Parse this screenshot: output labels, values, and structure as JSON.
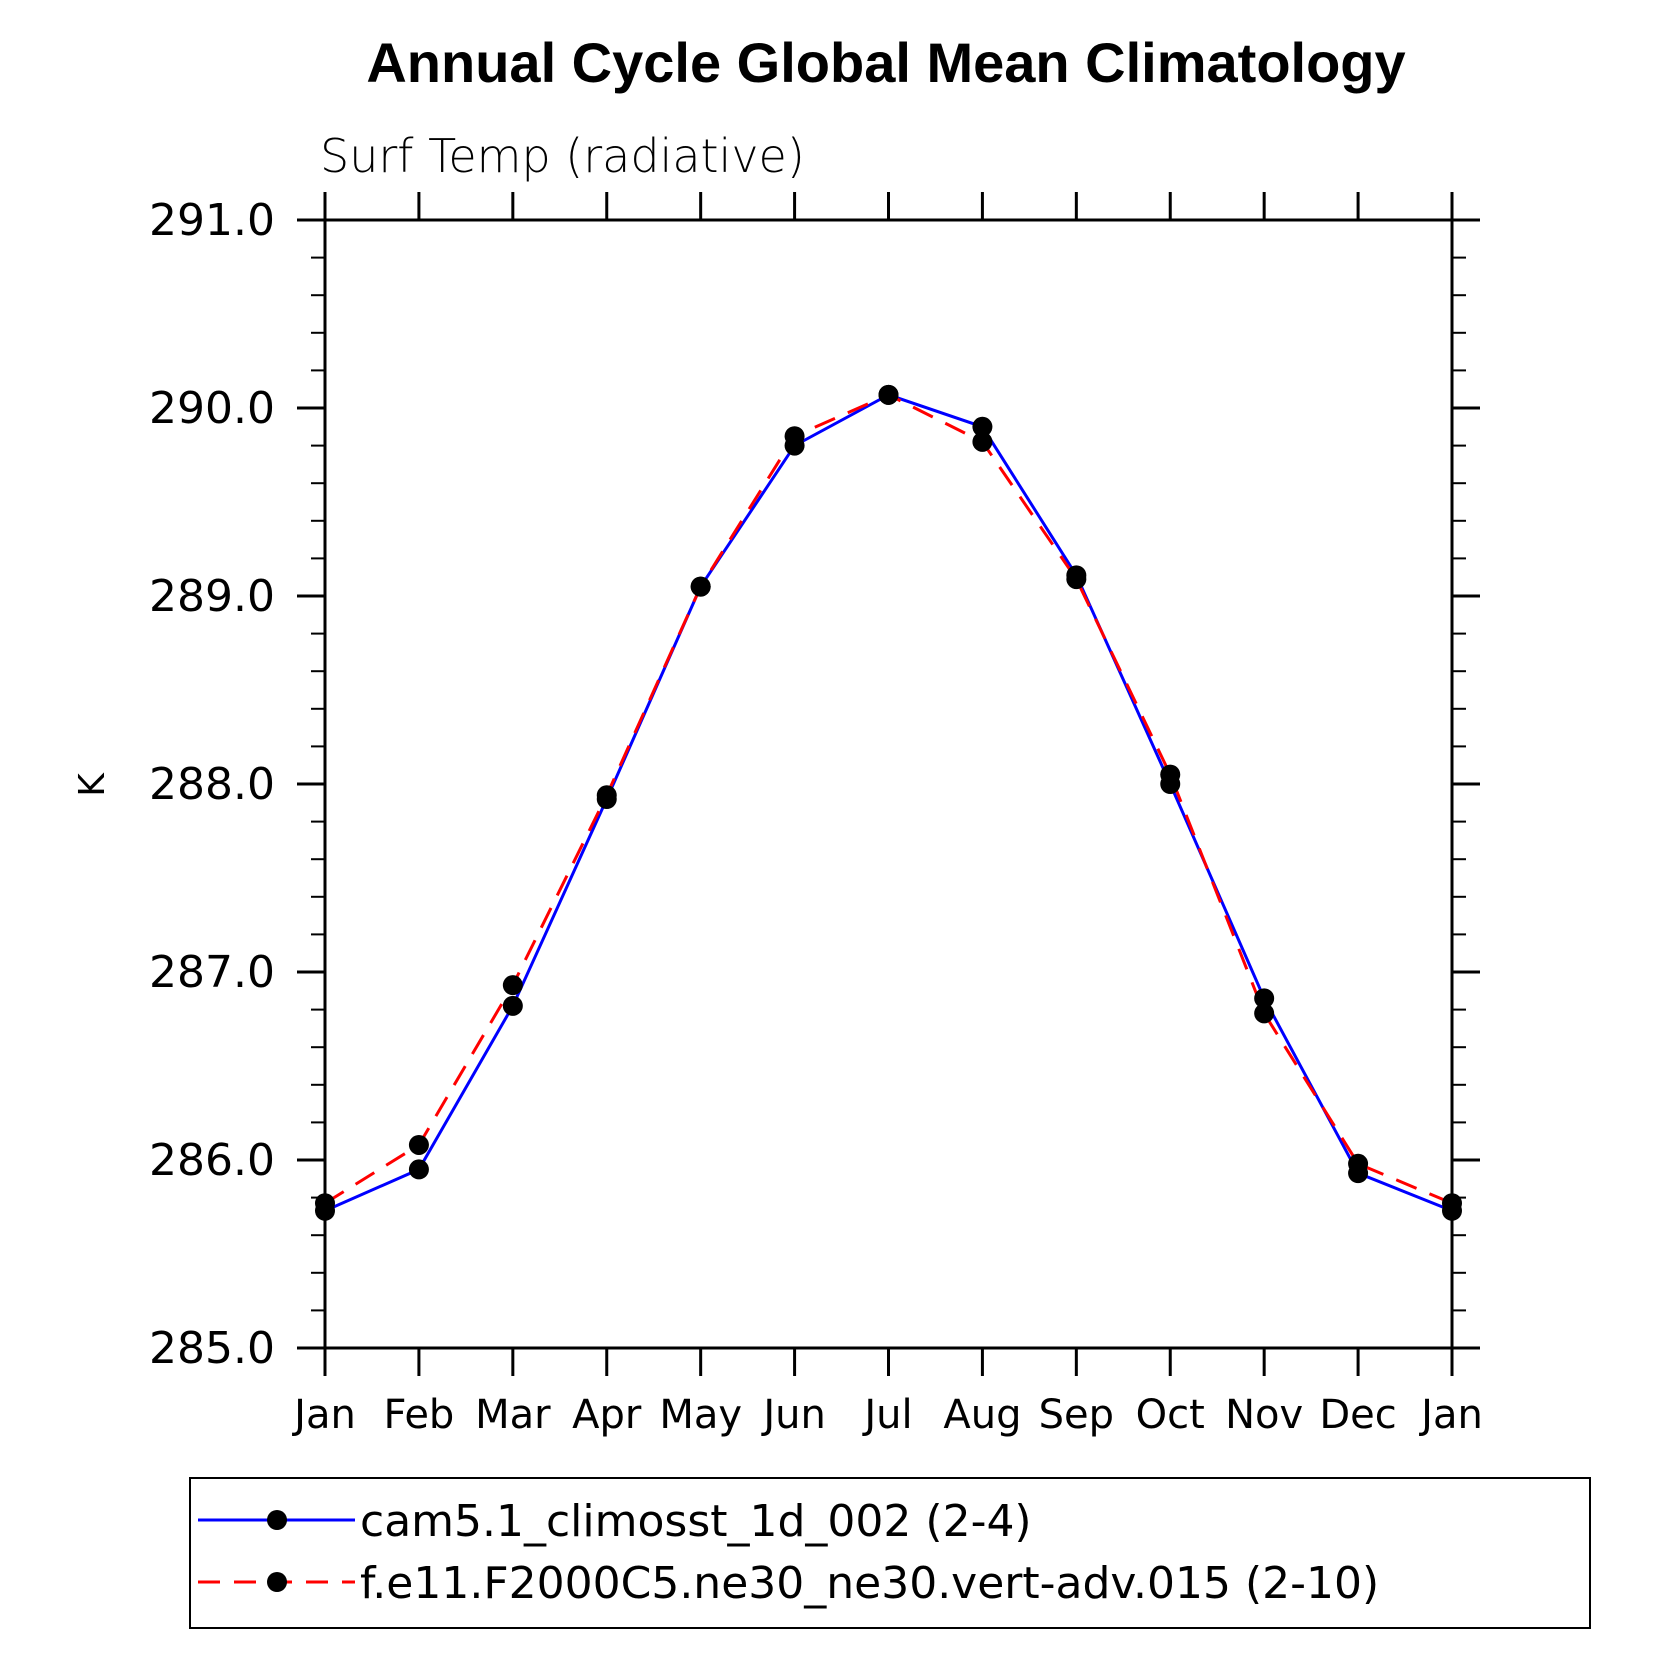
{
  "chart_data": {
    "type": "line",
    "title": "Annual Cycle Global Mean Climatology",
    "subtitle": "Surf Temp (radiative)",
    "xlabel": "",
    "ylabel": "K",
    "categories": [
      "Jan",
      "Feb",
      "Mar",
      "Apr",
      "May",
      "Jun",
      "Jul",
      "Aug",
      "Sep",
      "Oct",
      "Nov",
      "Dec",
      "Jan"
    ],
    "ylim": [
      285.0,
      291.0
    ],
    "yticks": [
      "285.0",
      "286.0",
      "287.0",
      "288.0",
      "289.0",
      "290.0",
      "291.0"
    ],
    "grid": false,
    "legend_position": "bottom",
    "series": [
      {
        "name": "cam5.1_climosst_1d_002 (2-4)",
        "color": "#0000ff",
        "line_style": "solid",
        "marker": "filled-circle",
        "values": [
          285.73,
          285.95,
          286.82,
          287.92,
          289.05,
          289.8,
          290.07,
          289.9,
          289.11,
          288.0,
          286.86,
          285.93,
          285.73
        ]
      },
      {
        "name": "f.e11.F2000C5.ne30_ne30.vert-adv.015 (2-10)",
        "color": "#ff0000",
        "line_style": "dashed",
        "marker": "filled-circle",
        "values": [
          285.77,
          286.08,
          286.93,
          287.94,
          289.05,
          289.85,
          290.07,
          289.82,
          289.09,
          288.05,
          286.78,
          285.98,
          285.77
        ]
      }
    ]
  }
}
